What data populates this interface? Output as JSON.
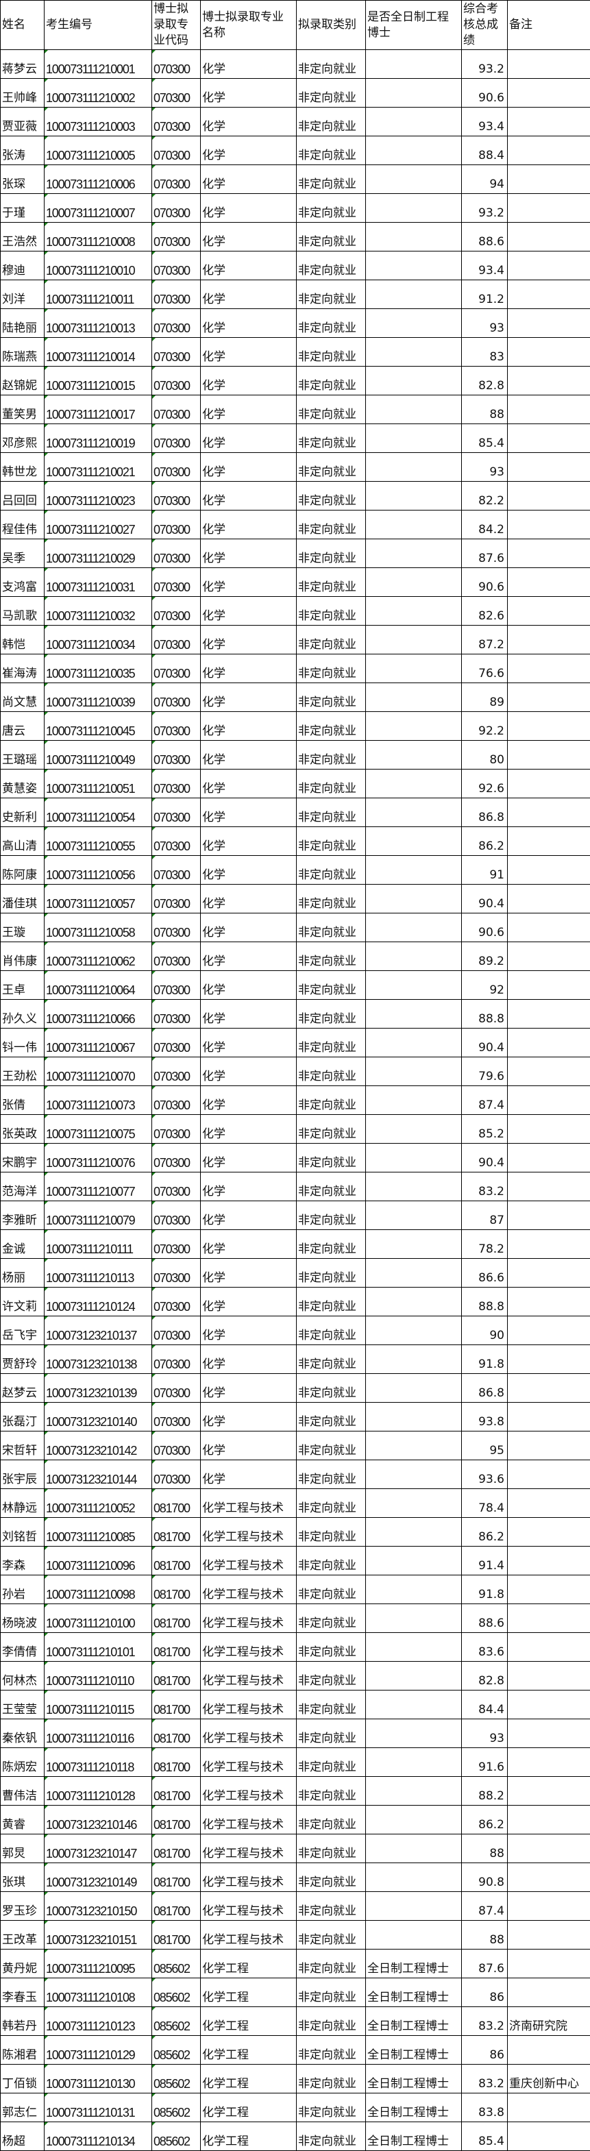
{
  "headers": [
    "姓名",
    "考生编号",
    "博士拟录取专业代码",
    "博士拟录取专业名称",
    "拟录取类别",
    "是否全日制工程博士",
    "综合考核总成绩",
    "备注"
  ],
  "rows": [
    [
      "蒋梦云",
      "100073111210001",
      "070300",
      "化学",
      "非定向就业",
      "",
      "93.2",
      ""
    ],
    [
      "王帅峰",
      "100073111210002",
      "070300",
      "化学",
      "非定向就业",
      "",
      "90.6",
      ""
    ],
    [
      "贾亚薇",
      "100073111210003",
      "070300",
      "化学",
      "非定向就业",
      "",
      "93.4",
      ""
    ],
    [
      "张涛",
      "100073111210005",
      "070300",
      "化学",
      "非定向就业",
      "",
      "88.4",
      ""
    ],
    [
      "张琛",
      "100073111210006",
      "070300",
      "化学",
      "非定向就业",
      "",
      "94",
      ""
    ],
    [
      "于瑾",
      "100073111210007",
      "070300",
      "化学",
      "非定向就业",
      "",
      "93.2",
      ""
    ],
    [
      "王浩然",
      "100073111210008",
      "070300",
      "化学",
      "非定向就业",
      "",
      "88.6",
      ""
    ],
    [
      "穆迪",
      "100073111210010",
      "070300",
      "化学",
      "非定向就业",
      "",
      "93.4",
      ""
    ],
    [
      "刘洋",
      "100073111210011",
      "070300",
      "化学",
      "非定向就业",
      "",
      "91.2",
      ""
    ],
    [
      "陆艳丽",
      "100073111210013",
      "070300",
      "化学",
      "非定向就业",
      "",
      "93",
      ""
    ],
    [
      "陈瑞燕",
      "100073111210014",
      "070300",
      "化学",
      "非定向就业",
      "",
      "83",
      ""
    ],
    [
      "赵锦妮",
      "100073111210015",
      "070300",
      "化学",
      "非定向就业",
      "",
      "82.8",
      ""
    ],
    [
      "董笑男",
      "100073111210017",
      "070300",
      "化学",
      "非定向就业",
      "",
      "88",
      ""
    ],
    [
      "邓彦熙",
      "100073111210019",
      "070300",
      "化学",
      "非定向就业",
      "",
      "85.4",
      ""
    ],
    [
      "韩世龙",
      "100073111210021",
      "070300",
      "化学",
      "非定向就业",
      "",
      "93",
      ""
    ],
    [
      "吕回回",
      "100073111210023",
      "070300",
      "化学",
      "非定向就业",
      "",
      "82.2",
      ""
    ],
    [
      "程佳伟",
      "100073111210027",
      "070300",
      "化学",
      "非定向就业",
      "",
      "84.2",
      ""
    ],
    [
      "吴季",
      "100073111210029",
      "070300",
      "化学",
      "非定向就业",
      "",
      "87.6",
      ""
    ],
    [
      "支鸿富",
      "100073111210031",
      "070300",
      "化学",
      "非定向就业",
      "",
      "90.6",
      ""
    ],
    [
      "马凯歌",
      "100073111210032",
      "070300",
      "化学",
      "非定向就业",
      "",
      "82.6",
      ""
    ],
    [
      "韩恺",
      "100073111210034",
      "070300",
      "化学",
      "非定向就业",
      "",
      "87.2",
      ""
    ],
    [
      "崔海涛",
      "100073111210035",
      "070300",
      "化学",
      "非定向就业",
      "",
      "76.6",
      ""
    ],
    [
      "尚文慧",
      "100073111210039",
      "070300",
      "化学",
      "非定向就业",
      "",
      "89",
      ""
    ],
    [
      "唐云",
      "100073111210045",
      "070300",
      "化学",
      "非定向就业",
      "",
      "92.2",
      ""
    ],
    [
      "王璐瑶",
      "100073111210049",
      "070300",
      "化学",
      "非定向就业",
      "",
      "80",
      ""
    ],
    [
      "黄慧姿",
      "100073111210051",
      "070300",
      "化学",
      "非定向就业",
      "",
      "92.6",
      ""
    ],
    [
      "史新利",
      "100073111210054",
      "070300",
      "化学",
      "非定向就业",
      "",
      "86.8",
      ""
    ],
    [
      "高山清",
      "100073111210055",
      "070300",
      "化学",
      "非定向就业",
      "",
      "86.2",
      ""
    ],
    [
      "陈阿康",
      "100073111210056",
      "070300",
      "化学",
      "非定向就业",
      "",
      "91",
      ""
    ],
    [
      "潘佳琪",
      "100073111210057",
      "070300",
      "化学",
      "非定向就业",
      "",
      "90.4",
      ""
    ],
    [
      "王璇",
      "100073111210058",
      "070300",
      "化学",
      "非定向就业",
      "",
      "90.6",
      ""
    ],
    [
      "肖伟康",
      "100073111210062",
      "070300",
      "化学",
      "非定向就业",
      "",
      "89.2",
      ""
    ],
    [
      "王卓",
      "100073111210064",
      "070300",
      "化学",
      "非定向就业",
      "",
      "92",
      ""
    ],
    [
      "孙久义",
      "100073111210066",
      "070300",
      "化学",
      "非定向就业",
      "",
      "88.8",
      ""
    ],
    [
      "钭一伟",
      "100073111210067",
      "070300",
      "化学",
      "非定向就业",
      "",
      "90.4",
      ""
    ],
    [
      "王劲松",
      "100073111210070",
      "070300",
      "化学",
      "非定向就业",
      "",
      "79.6",
      ""
    ],
    [
      "张倩",
      "100073111210073",
      "070300",
      "化学",
      "非定向就业",
      "",
      "87.4",
      ""
    ],
    [
      "张英政",
      "100073111210075",
      "070300",
      "化学",
      "非定向就业",
      "",
      "85.2",
      ""
    ],
    [
      "宋鹏宇",
      "100073111210076",
      "070300",
      "化学",
      "非定向就业",
      "",
      "90.4",
      ""
    ],
    [
      "范海洋",
      "100073111210077",
      "070300",
      "化学",
      "非定向就业",
      "",
      "83.2",
      ""
    ],
    [
      "李雅昕",
      "100073111210079",
      "070300",
      "化学",
      "非定向就业",
      "",
      "87",
      ""
    ],
    [
      "金诚",
      "100073111210111",
      "070300",
      "化学",
      "非定向就业",
      "",
      "78.2",
      ""
    ],
    [
      "杨丽",
      "100073111210113",
      "070300",
      "化学",
      "非定向就业",
      "",
      "86.6",
      ""
    ],
    [
      "许文莉",
      "100073111210124",
      "070300",
      "化学",
      "非定向就业",
      "",
      "88.8",
      ""
    ],
    [
      "岳飞宇",
      "100073123210137",
      "070300",
      "化学",
      "非定向就业",
      "",
      "90",
      ""
    ],
    [
      "贾舒玲",
      "100073123210138",
      "070300",
      "化学",
      "非定向就业",
      "",
      "91.8",
      ""
    ],
    [
      "赵梦云",
      "100073123210139",
      "070300",
      "化学",
      "非定向就业",
      "",
      "86.8",
      ""
    ],
    [
      "张磊汀",
      "100073123210140",
      "070300",
      "化学",
      "非定向就业",
      "",
      "93.8",
      ""
    ],
    [
      "宋哲轩",
      "100073123210142",
      "070300",
      "化学",
      "非定向就业",
      "",
      "95",
      ""
    ],
    [
      "张宇辰",
      "100073123210144",
      "070300",
      "化学",
      "非定向就业",
      "",
      "93.6",
      ""
    ],
    [
      "林静远",
      "100073111210052",
      "081700",
      "化学工程与技术",
      "非定向就业",
      "",
      "78.4",
      ""
    ],
    [
      "刘铭哲",
      "100073111210085",
      "081700",
      "化学工程与技术",
      "非定向就业",
      "",
      "86.2",
      ""
    ],
    [
      "李森",
      "100073111210096",
      "081700",
      "化学工程与技术",
      "非定向就业",
      "",
      "91.4",
      ""
    ],
    [
      "孙岩",
      "100073111210098",
      "081700",
      "化学工程与技术",
      "非定向就业",
      "",
      "91.8",
      ""
    ],
    [
      "杨晓波",
      "100073111210100",
      "081700",
      "化学工程与技术",
      "非定向就业",
      "",
      "88.6",
      ""
    ],
    [
      "李倩倩",
      "100073111210101",
      "081700",
      "化学工程与技术",
      "非定向就业",
      "",
      "83.6",
      ""
    ],
    [
      "何林杰",
      "100073111210110",
      "081700",
      "化学工程与技术",
      "非定向就业",
      "",
      "82.8",
      ""
    ],
    [
      "王莹莹",
      "100073111210115",
      "081700",
      "化学工程与技术",
      "非定向就业",
      "",
      "84.4",
      ""
    ],
    [
      "秦依钒",
      "100073111210116",
      "081700",
      "化学工程与技术",
      "非定向就业",
      "",
      "93",
      ""
    ],
    [
      "陈炳宏",
      "100073111210118",
      "081700",
      "化学工程与技术",
      "非定向就业",
      "",
      "91.6",
      ""
    ],
    [
      "曹伟洁",
      "100073111210128",
      "081700",
      "化学工程与技术",
      "非定向就业",
      "",
      "88.2",
      ""
    ],
    [
      "黄睿",
      "100073123210146",
      "081700",
      "化学工程与技术",
      "非定向就业",
      "",
      "86.2",
      ""
    ],
    [
      "郭炅",
      "100073123210147",
      "081700",
      "化学工程与技术",
      "非定向就业",
      "",
      "88",
      ""
    ],
    [
      "张琪",
      "100073123210149",
      "081700",
      "化学工程与技术",
      "非定向就业",
      "",
      "90.8",
      ""
    ],
    [
      "罗玉珍",
      "100073123210150",
      "081700",
      "化学工程与技术",
      "非定向就业",
      "",
      "87.4",
      ""
    ],
    [
      "王改革",
      "100073123210151",
      "081700",
      "化学工程与技术",
      "非定向就业",
      "",
      "88",
      ""
    ],
    [
      "黄丹妮",
      "100073111210095",
      "085602",
      "化学工程",
      "非定向就业",
      "全日制工程博士",
      "87.6",
      ""
    ],
    [
      "李春玉",
      "100073111210108",
      "085602",
      "化学工程",
      "非定向就业",
      "全日制工程博士",
      "86",
      ""
    ],
    [
      "韩若丹",
      "100073111210123",
      "085602",
      "化学工程",
      "非定向就业",
      "全日制工程博士",
      "83.2",
      "济南研究院"
    ],
    [
      "陈湘君",
      "100073111210129",
      "085602",
      "化学工程",
      "非定向就业",
      "全日制工程博士",
      "86",
      ""
    ],
    [
      "丁佰锁",
      "100073111210130",
      "085602",
      "化学工程",
      "非定向就业",
      "全日制工程博士",
      "83.2",
      "重庆创新中心"
    ],
    [
      "郭志仁",
      "100073111210131",
      "085602",
      "化学工程",
      "非定向就业",
      "全日制工程博士",
      "83.8",
      ""
    ],
    [
      "杨超",
      "100073111210134",
      "085602",
      "化学工程",
      "非定向就业",
      "全日制工程博士",
      "85.4",
      ""
    ]
  ]
}
